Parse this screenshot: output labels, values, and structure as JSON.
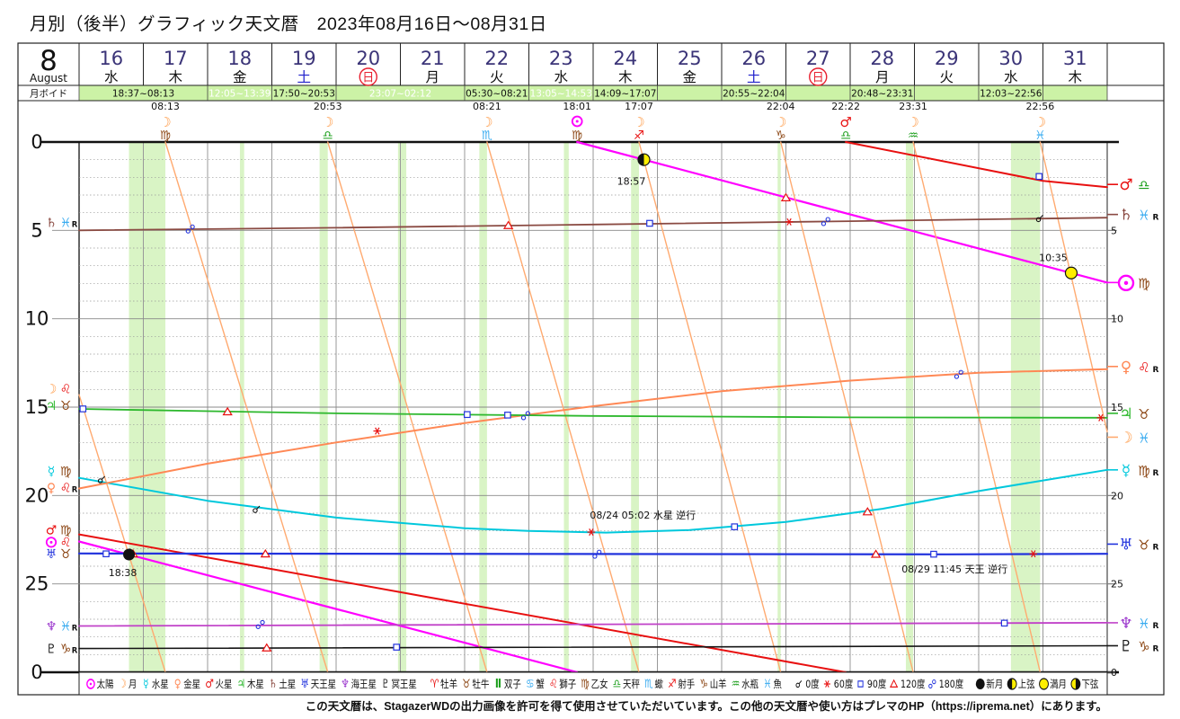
{
  "title": "月別（後半）グラフィック天文暦　2023年08月16日～08月31日",
  "footer": "この天文暦は、StagazerWDの出力画像を許可を得て使用させていただいています。この他の天文暦や使い方はプレマのHP（https://iprema.net）にあります。",
  "header": {
    "month_number": "8",
    "month_name": "August",
    "days": [
      {
        "date": "16",
        "dow": "水",
        "type": "weekday"
      },
      {
        "date": "17",
        "dow": "木",
        "type": "weekday"
      },
      {
        "date": "18",
        "dow": "金",
        "type": "weekday"
      },
      {
        "date": "19",
        "dow": "土",
        "type": "saturday"
      },
      {
        "date": "20",
        "dow": "日",
        "type": "sunday"
      },
      {
        "date": "21",
        "dow": "月",
        "type": "weekday"
      },
      {
        "date": "22",
        "dow": "火",
        "type": "weekday"
      },
      {
        "date": "23",
        "dow": "水",
        "type": "weekday"
      },
      {
        "date": "24",
        "dow": "木",
        "type": "weekday"
      },
      {
        "date": "25",
        "dow": "金",
        "type": "weekday"
      },
      {
        "date": "26",
        "dow": "土",
        "type": "saturday"
      },
      {
        "date": "27",
        "dow": "日",
        "type": "sunday"
      },
      {
        "date": "28",
        "dow": "月",
        "type": "weekday"
      },
      {
        "date": "29",
        "dow": "火",
        "type": "weekday"
      },
      {
        "date": "30",
        "dow": "水",
        "type": "weekday"
      },
      {
        "date": "31",
        "dow": "木",
        "type": "weekday"
      }
    ]
  },
  "void_row": {
    "label": "月ボイド",
    "entries": [
      {
        "text": "18:37~08:13",
        "center_day": 17.0,
        "white": false
      },
      {
        "text": "12:05~13:39",
        "center_day": 18.5,
        "white": true
      },
      {
        "text": "17:50~20:53",
        "center_day": 19.5,
        "white": false
      },
      {
        "text": "23:07~02:12",
        "center_day": 21.0,
        "white": true
      },
      {
        "text": "05:30~08:21",
        "center_day": 22.5,
        "white": false
      },
      {
        "text": "13:05~14:53",
        "center_day": 23.5,
        "white": true
      },
      {
        "text": "14:09~17:07",
        "center_day": 24.5,
        "white": false
      },
      {
        "text": "20:55~22:04",
        "center_day": 26.5,
        "white": false
      },
      {
        "text": "20:48~23:31",
        "center_day": 28.5,
        "white": false
      },
      {
        "text": "12:03~22:56",
        "center_day": 30.5,
        "white": false
      }
    ]
  },
  "ingress_row": [
    {
      "time": "08:13",
      "planet": "moon",
      "sign": "virgo",
      "day": 17.343
    },
    {
      "time": "20:53",
      "planet": "moon",
      "sign": "libra",
      "day": 19.87
    },
    {
      "time": "08:21",
      "planet": "moon",
      "sign": "scorpio",
      "day": 22.348
    },
    {
      "time": "18:01",
      "planet": "sun",
      "sign": "virgo",
      "day": 23.751
    },
    {
      "time": "17:07",
      "planet": "moon",
      "sign": "sagittarius",
      "day": 24.713
    },
    {
      "time": "22:04",
      "planet": "moon",
      "sign": "capricorn",
      "day": 26.919
    },
    {
      "time": "22:22",
      "planet": "mars",
      "sign": "libra",
      "day": 27.932
    },
    {
      "time": "23:31",
      "planet": "moon",
      "sign": "aquarius",
      "day": 28.98
    },
    {
      "time": "22:56",
      "planet": "moon",
      "sign": "pisces",
      "day": 30.956
    }
  ],
  "glyphs": {
    "sun": "☉",
    "moon": "☽",
    "mercury": "☿",
    "venus": "♀",
    "mars": "♂",
    "jupiter": "♃",
    "saturn": "♄",
    "uranus": "♅",
    "neptune": "♆",
    "pluto": "♇",
    "aries": "♈",
    "taurus": "♉",
    "gemini": "Ⅱ",
    "cancer": "♋",
    "leo": "♌",
    "virgo": "♍",
    "libra": "♎",
    "scorpio": "♏",
    "sagittarius": "♐",
    "capricorn": "♑",
    "aquarius": "♒",
    "pisces": "♓"
  },
  "colors": {
    "sun": "#ff00ff",
    "moon": "#ff9944",
    "moon_line": "#ffaa70",
    "mercury": "#00c8dc",
    "venus": "#ff8855",
    "mars": "#e81010",
    "jupiter": "#2db82d",
    "saturn": "#8a4a42",
    "uranus": "#2233dd",
    "neptune": "#c040c8",
    "neptune_label": "#9933cc",
    "pluto": "#151515",
    "fire": "#e81010",
    "earth": "#8b4513",
    "air": "#1a9e1a",
    "water": "#38abf0",
    "aspect_blue": "#2233dd",
    "aspect_red": "#e81010",
    "black": "#111111",
    "phase_yellow": "#ffee00",
    "void_bg": "#ccf2a6",
    "void_stripe": "rgba(185,235,150,0.55)",
    "date_number": "#3b3478",
    "saturday": "#2020cc",
    "sunday": "#e82030",
    "grid": "#999999",
    "grid_major": "#888888"
  },
  "axis": {
    "left_ticks": [
      "0",
      "5",
      "10",
      "15",
      "20",
      "25",
      "0"
    ],
    "right_ticks": [
      "5",
      "10",
      "15",
      "20",
      "25",
      "0"
    ]
  },
  "side_labels": {
    "left": [
      {
        "planet": "saturn",
        "sign": "pisces",
        "retro": true,
        "deg": 4.55
      },
      {
        "planet": "moon",
        "sign": "leo",
        "retro": false,
        "deg": 13.95
      },
      {
        "planet": "jupiter",
        "sign": "taurus",
        "retro": false,
        "deg": 14.9
      },
      {
        "planet": "mercury",
        "sign": "virgo",
        "retro": false,
        "deg": 18.6
      },
      {
        "planet": "venus",
        "sign": "leo",
        "retro": true,
        "deg": 19.55
      },
      {
        "planet": "mars",
        "sign": "virgo",
        "retro": false,
        "deg": 21.95
      },
      {
        "planet": "sun",
        "sign": "leo",
        "retro": false,
        "deg": 22.62
      },
      {
        "planet": "uranus",
        "sign": "taurus",
        "retro": false,
        "deg": 23.3
      },
      {
        "planet": "neptune",
        "sign": "pisces",
        "retro": true,
        "deg": 27.38
      },
      {
        "planet": "pluto",
        "sign": "capricorn",
        "retro": true,
        "deg": 28.66
      }
    ],
    "right": [
      {
        "planet": "mars",
        "sign": "libra",
        "retro": false,
        "deg": 2.4
      },
      {
        "planet": "saturn",
        "sign": "pisces",
        "retro": true,
        "deg": 4.1
      },
      {
        "planet": "sun",
        "sign": "virgo",
        "retro": false,
        "deg": 7.95,
        "big": true
      },
      {
        "planet": "venus",
        "sign": "leo",
        "retro": true,
        "deg": 12.7
      },
      {
        "planet": "jupiter",
        "sign": "taurus",
        "retro": false,
        "deg": 15.35
      },
      {
        "planet": "moon",
        "sign": "pisces",
        "retro": false,
        "deg": 16.7
      },
      {
        "planet": "mercury",
        "sign": "virgo",
        "retro": true,
        "deg": 18.55
      },
      {
        "planet": "uranus",
        "sign": "taurus",
        "retro": true,
        "deg": 22.75
      },
      {
        "planet": "neptune",
        "sign": "pisces",
        "retro": true,
        "deg": 27.2
      },
      {
        "planet": "pluto",
        "sign": "capricorn",
        "retro": true,
        "deg": 28.5
      }
    ]
  },
  "chart_data": {
    "type": "line",
    "x_axis": {
      "unit": "day_of_august_2023",
      "start": 16,
      "end": 32
    },
    "y_axis": {
      "unit": "degrees_within_sign",
      "min": 0,
      "max": 30,
      "ticks": [
        0,
        5,
        10,
        15,
        20,
        25,
        30
      ]
    },
    "series": [
      {
        "name": "sun",
        "color_key": "sun",
        "width": 2.2,
        "segments": [
          [
            [
              16,
              22.6
            ],
            [
              23.751,
              30
            ]
          ],
          [
            [
              23.751,
              0
            ],
            [
              32,
              7.95
            ]
          ]
        ]
      },
      {
        "name": "moon",
        "color_key": "moon_line",
        "width": 1.4,
        "segments": [
          [
            [
              16,
              14.3
            ],
            [
              17.343,
              30
            ]
          ],
          [
            [
              17.343,
              0
            ],
            [
              19.87,
              30
            ]
          ],
          [
            [
              19.87,
              0
            ],
            [
              22.348,
              30
            ]
          ],
          [
            [
              22.348,
              0
            ],
            [
              24.713,
              30
            ]
          ],
          [
            [
              24.713,
              0
            ],
            [
              26.919,
              30
            ]
          ],
          [
            [
              26.919,
              0
            ],
            [
              28.98,
              30
            ]
          ],
          [
            [
              28.98,
              0
            ],
            [
              30.956,
              30
            ]
          ],
          [
            [
              30.956,
              0
            ],
            [
              32,
              16.4
            ]
          ]
        ]
      },
      {
        "name": "mercury",
        "color_key": "mercury",
        "width": 2,
        "segments": [
          [
            [
              16,
              19.0
            ],
            [
              18,
              20.3
            ],
            [
              20,
              21.25
            ],
            [
              22,
              21.85
            ],
            [
              23,
              22.0
            ],
            [
              24.2,
              22.1
            ],
            [
              25.5,
              21.95
            ],
            [
              27,
              21.5
            ],
            [
              28.5,
              20.75
            ],
            [
              30,
              19.75
            ],
            [
              31,
              19.15
            ],
            [
              32,
              18.55
            ]
          ]
        ]
      },
      {
        "name": "venus",
        "color_key": "venus",
        "width": 2,
        "segments": [
          [
            [
              16,
              19.6
            ],
            [
              18,
              18.2
            ],
            [
              20,
              17.0
            ],
            [
              22,
              15.9
            ],
            [
              24,
              14.95
            ],
            [
              26,
              14.1
            ],
            [
              28,
              13.5
            ],
            [
              30,
              13.05
            ],
            [
              32,
              12.85
            ]
          ]
        ]
      },
      {
        "name": "mars",
        "color_key": "mars",
        "width": 2,
        "segments": [
          [
            [
              16,
              22.2
            ],
            [
              27.932,
              30
            ]
          ],
          [
            [
              27.932,
              0
            ],
            [
              31,
              2.2
            ],
            [
              32,
              2.55
            ]
          ]
        ]
      },
      {
        "name": "jupiter",
        "color_key": "jupiter",
        "width": 1.8,
        "segments": [
          [
            [
              16,
              15.1
            ],
            [
              20,
              15.35
            ],
            [
              24,
              15.5
            ],
            [
              28,
              15.58
            ],
            [
              32,
              15.6
            ]
          ]
        ]
      },
      {
        "name": "saturn",
        "color_key": "saturn",
        "width": 1.8,
        "segments": [
          [
            [
              16,
              5.0
            ],
            [
              20,
              4.85
            ],
            [
              24,
              4.67
            ],
            [
              28,
              4.48
            ],
            [
              32,
              4.28
            ]
          ]
        ]
      },
      {
        "name": "uranus",
        "color_key": "uranus",
        "width": 2.2,
        "segments": [
          [
            [
              16,
              23.28
            ],
            [
              29.5,
              23.33
            ],
            [
              32,
              23.3
            ]
          ]
        ]
      },
      {
        "name": "neptune",
        "color_key": "neptune",
        "width": 1.8,
        "segments": [
          [
            [
              16,
              27.38
            ],
            [
              32,
              27.2
            ]
          ]
        ]
      },
      {
        "name": "pluto",
        "color_key": "pluto",
        "width": 1.6,
        "segments": [
          [
            [
              16,
              28.66
            ],
            [
              32,
              28.5
            ]
          ]
        ]
      }
    ],
    "aspect_markers": [
      [
        "sq",
        16.06,
        15.1
      ],
      [
        "tri",
        18.31,
        15.26
      ],
      [
        "sq",
        22.04,
        15.42
      ],
      [
        "sq",
        22.67,
        15.45
      ],
      [
        "opp",
        22.95,
        15.48
      ],
      [
        "sex",
        31.9,
        15.6
      ],
      [
        "opp",
        17.73,
        4.92
      ],
      [
        "tri",
        22.68,
        4.72
      ],
      [
        "sq",
        24.88,
        4.6
      ],
      [
        "sex",
        27.05,
        4.52
      ],
      [
        "opp",
        27.62,
        4.5
      ],
      [
        "conj",
        30.95,
        4.32
      ],
      [
        "conj",
        16.35,
        19.1
      ],
      [
        "conj",
        18.76,
        20.78
      ],
      [
        "sex",
        23.97,
        22.07
      ],
      [
        "sq",
        26.2,
        21.77
      ],
      [
        "tri",
        28.27,
        20.92
      ],
      [
        "sex",
        20.64,
        16.35
      ],
      [
        "opp",
        29.69,
        13.15
      ],
      [
        "sq",
        16.42,
        23.3
      ],
      [
        "tri",
        16.84,
        23.3
      ],
      [
        "tri",
        18.9,
        23.3
      ],
      [
        "opp",
        24.06,
        23.32
      ],
      [
        "tri",
        28.4,
        23.32
      ],
      [
        "sq",
        29.3,
        23.32
      ],
      [
        "sex",
        30.85,
        23.3
      ],
      [
        "tri",
        27.0,
        3.15
      ],
      [
        "sq",
        30.94,
        1.95
      ],
      [
        "opp",
        18.82,
        27.3
      ],
      [
        "sq",
        30.4,
        27.22
      ],
      [
        "tri",
        18.92,
        28.62
      ],
      [
        "sq",
        20.94,
        28.58
      ]
    ],
    "moon_phases": [
      {
        "type": "new",
        "time": "18:38",
        "day": 16.777,
        "deg": 23.34
      },
      {
        "type": "fq",
        "time": "18:57",
        "day": 24.79,
        "deg": 1.0
      },
      {
        "type": "full",
        "time": "10:35",
        "day": 31.44,
        "deg": 7.41
      }
    ],
    "annotations": [
      {
        "text": "08/24 05:02 水星 逆行",
        "day": 23.95,
        "deg": 21.3
      },
      {
        "text": "08/29 11:45 天王 逆行",
        "day": 28.8,
        "deg": 24.35
      }
    ],
    "void_stripes": [
      [
        16.776,
        17.343
      ],
      [
        18.503,
        18.569
      ],
      [
        19.743,
        19.87
      ],
      [
        20.963,
        21.092
      ],
      [
        22.229,
        22.348
      ],
      [
        23.545,
        23.62
      ],
      [
        24.59,
        24.713
      ],
      [
        26.871,
        26.919
      ],
      [
        28.867,
        28.98
      ],
      [
        30.502,
        30.956
      ]
    ]
  },
  "legend": {
    "planets": [
      [
        "sun",
        "太陽"
      ],
      [
        "moon",
        "月"
      ],
      [
        "mercury",
        "水星"
      ],
      [
        "venus",
        "金星"
      ],
      [
        "mars",
        "火星"
      ],
      [
        "jupiter",
        "木星"
      ],
      [
        "saturn",
        "土星"
      ],
      [
        "uranus",
        "天王星"
      ],
      [
        "neptune",
        "海王星"
      ],
      [
        "pluto",
        "冥王星"
      ]
    ],
    "signs": [
      [
        "aries",
        "牡羊"
      ],
      [
        "taurus",
        "牡牛"
      ],
      [
        "gemini",
        "双子"
      ],
      [
        "cancer",
        "蟹"
      ],
      [
        "leo",
        "獅子"
      ],
      [
        "virgo",
        "乙女"
      ],
      [
        "libra",
        "天秤"
      ],
      [
        "scorpio",
        "蠍"
      ],
      [
        "sagittarius",
        "射手"
      ],
      [
        "capricorn",
        "山羊"
      ],
      [
        "aquarius",
        "水瓶"
      ],
      [
        "pisces",
        "魚"
      ]
    ],
    "aspects": [
      [
        "conj",
        "0度"
      ],
      [
        "sex",
        "60度"
      ],
      [
        "sq",
        "90度"
      ],
      [
        "tri",
        "120度"
      ],
      [
        "opp",
        "180度"
      ]
    ],
    "phases": [
      [
        "new",
        "新月"
      ],
      [
        "fq",
        "上弦"
      ],
      [
        "full",
        "満月"
      ],
      [
        "lq",
        "下弦"
      ]
    ]
  }
}
